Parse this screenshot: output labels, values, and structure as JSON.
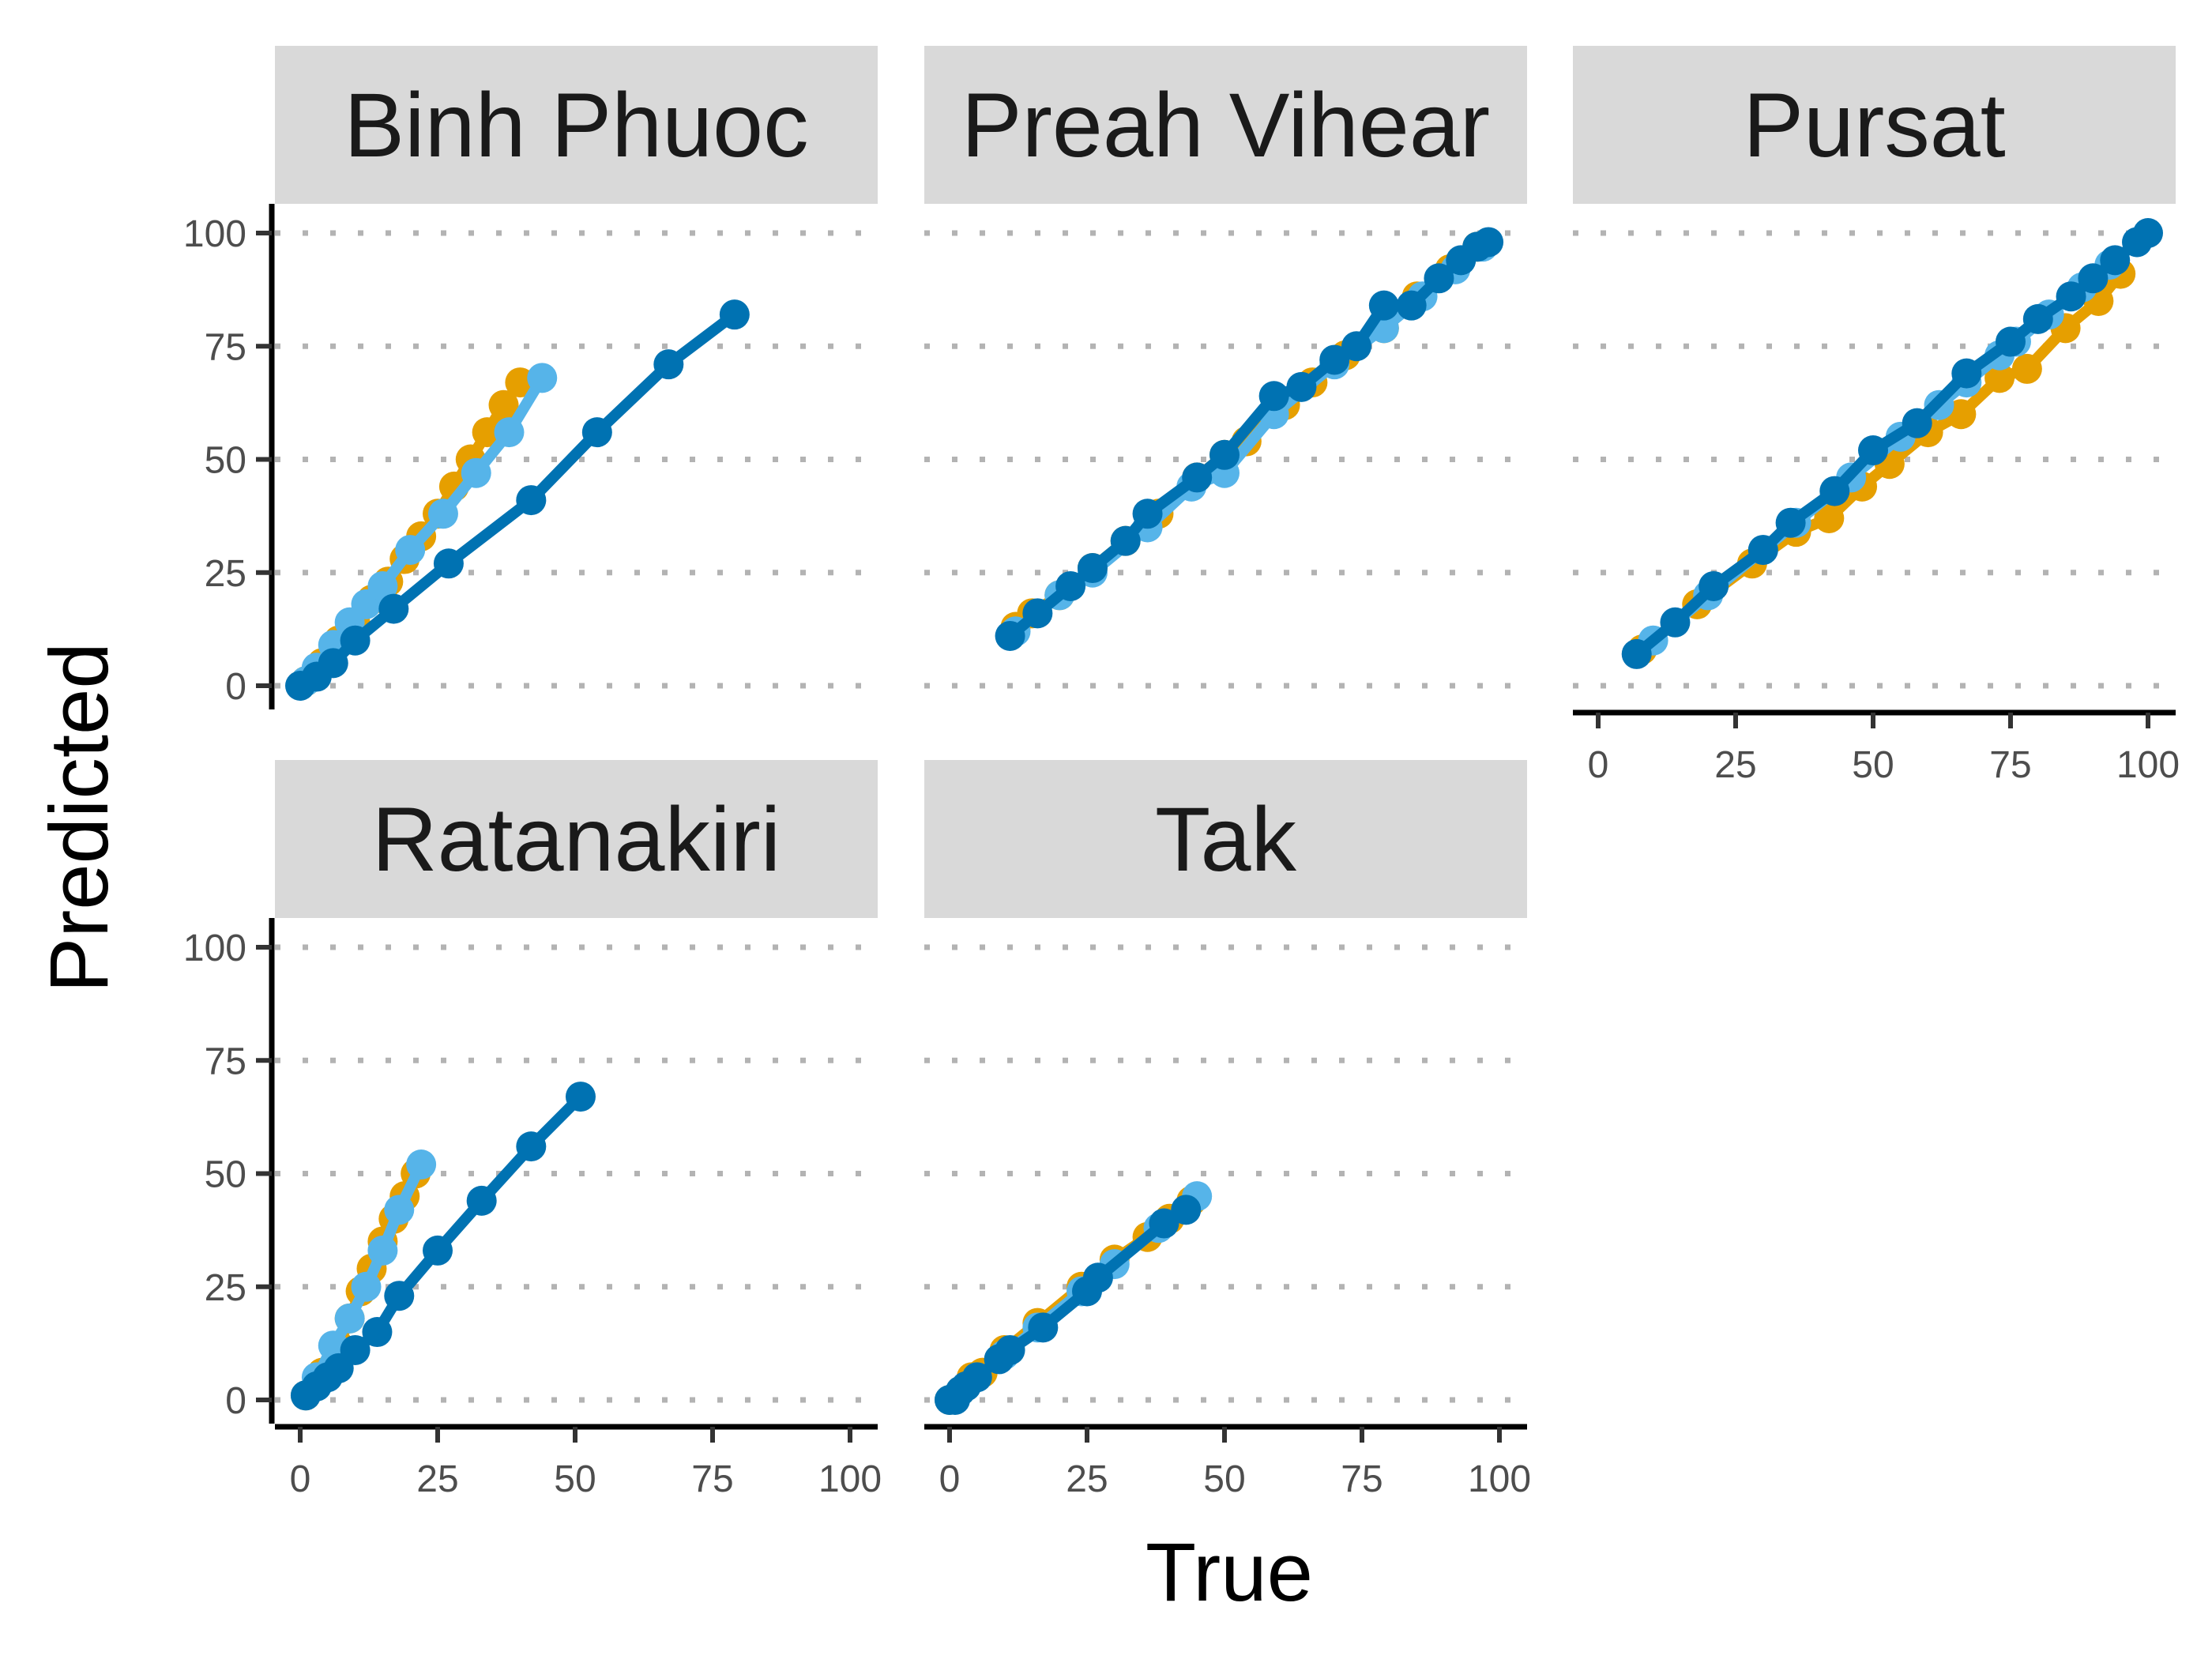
{
  "chart_data": {
    "type": "line",
    "xlabel": "True",
    "ylabel": "Predicted",
    "xlim": [
      0,
      100
    ],
    "ylim": [
      0,
      100
    ],
    "x_ticks": [
      0,
      25,
      50,
      75,
      100
    ],
    "y_ticks": [
      0,
      25,
      50,
      75,
      100
    ],
    "grid": "dotted horizontal",
    "colors": {
      "orange": "#E69F00",
      "skyblue": "#56B4E9",
      "blue": "#0072B2",
      "strip_bg": "#d9d9d9",
      "grid": "#b3b3b3"
    },
    "panels": [
      {
        "name": "Binh Phuoc",
        "series": [
          {
            "color": "orange",
            "x": [
              1,
              4,
              7,
              10,
              13,
              16,
              19,
              22,
              25,
              28,
              31,
              34,
              37,
              40
            ],
            "y": [
              1,
              5,
              10,
              14,
              19,
              23,
              28,
              33,
              38,
              44,
              50,
              56,
              62,
              67
            ]
          },
          {
            "color": "skyblue",
            "x": [
              1,
              3,
              6,
              9,
              12,
              15,
              20,
              26,
              32,
              38,
              44
            ],
            "y": [
              1,
              4,
              9,
              14,
              18,
              22,
              30,
              38,
              47,
              56,
              68
            ]
          },
          {
            "color": "blue",
            "x": [
              0,
              3,
              6,
              10,
              17,
              27,
              42,
              54,
              67,
              79
            ],
            "y": [
              0,
              2,
              5,
              10,
              17,
              27,
              41,
              56,
              71,
              82
            ]
          }
        ]
      },
      {
        "name": "Preah Vihear",
        "series": [
          {
            "color": "orange",
            "x": [
              12,
              15,
              20,
              26,
              32,
              38,
              45,
              50,
              54,
              61,
              66,
              72,
              79,
              85,
              91,
              96
            ],
            "y": [
              13,
              16,
              20,
              26,
              32,
              38,
              46,
              51,
              54,
              62,
              67,
              73,
              79,
              86,
              92,
              97
            ]
          },
          {
            "color": "skyblue",
            "x": [
              12,
              20,
              26,
              36,
              44,
              50,
              59,
              70,
              79,
              86,
              92,
              97
            ],
            "y": [
              12,
              20,
              25,
              35,
              44,
              47,
              60,
              71,
              79,
              86,
              92,
              97
            ]
          },
          {
            "color": "blue",
            "x": [
              11,
              16,
              22,
              26,
              32,
              36,
              45,
              50,
              59,
              64,
              70,
              74,
              79,
              84,
              89,
              93,
              96,
              98
            ],
            "y": [
              11,
              16,
              22,
              26,
              32,
              38,
              46,
              51,
              64,
              66,
              72,
              75,
              84,
              84,
              90,
              94,
              97,
              98
            ]
          }
        ]
      },
      {
        "name": "Pursat",
        "series": [
          {
            "color": "orange",
            "x": [
              8,
              18,
              28,
              36,
              42,
              48,
              53,
              60,
              66,
              73,
              78,
              85,
              91,
              95
            ],
            "y": [
              8,
              18,
              27,
              34,
              37,
              44,
              49,
              56,
              60,
              68,
              70,
              79,
              85,
              91
            ]
          },
          {
            "color": "skyblue",
            "x": [
              10,
              20,
              30,
              36,
              46,
              55,
              62,
              67,
              73,
              76,
              82,
              88,
              93,
              98
            ],
            "y": [
              10,
              20,
              30,
              36,
              46,
              55,
              62,
              67,
              73,
              76,
              82,
              88,
              93,
              98
            ]
          },
          {
            "color": "blue",
            "x": [
              7,
              14,
              21,
              30,
              35,
              43,
              50,
              58,
              67,
              75,
              80,
              86,
              90,
              94,
              98,
              100
            ],
            "y": [
              7,
              14,
              22,
              30,
              36,
              43,
              52,
              58,
              69,
              76,
              81,
              86,
              90,
              94,
              98,
              100
            ]
          }
        ]
      },
      {
        "name": "Ratanakiri",
        "series": [
          {
            "color": "orange",
            "x": [
              1,
              4,
              7,
              9,
              11,
              13,
              15,
              17,
              19,
              21
            ],
            "y": [
              1,
              6,
              12,
              18,
              24,
              29,
              35,
              40,
              45,
              50
            ]
          },
          {
            "color": "skyblue",
            "x": [
              1,
              3,
              6,
              9,
              12,
              15,
              18,
              22
            ],
            "y": [
              1,
              5,
              12,
              18,
              25,
              33,
              42,
              52
            ]
          },
          {
            "color": "blue",
            "x": [
              1,
              3,
              5,
              7,
              10,
              14,
              18,
              25,
              33,
              42,
              51
            ],
            "y": [
              1,
              3,
              5,
              7,
              11,
              15,
              23,
              33,
              44,
              56,
              67
            ]
          }
        ]
      },
      {
        "name": "Tak",
        "series": [
          {
            "color": "orange",
            "x": [
              0,
              2,
              4,
              6,
              10,
              16,
              24,
              30,
              36,
              40,
              44
            ],
            "y": [
              0,
              2,
              5,
              6,
              11,
              17,
              25,
              31,
              36,
              40,
              44
            ]
          },
          {
            "color": "skyblue",
            "x": [
              0,
              2,
              5,
              10,
              16,
              24,
              30,
              38,
              45
            ],
            "y": [
              0,
              2,
              5,
              10,
              16,
              24,
              30,
              38,
              45
            ]
          },
          {
            "color": "blue",
            "x": [
              0,
              1,
              2,
              3,
              5,
              9,
              11,
              17,
              25,
              27,
              39,
              43
            ],
            "y": [
              0,
              0,
              2,
              3,
              5,
              9,
              11,
              16,
              24,
              27,
              39,
              42
            ]
          }
        ]
      }
    ]
  }
}
